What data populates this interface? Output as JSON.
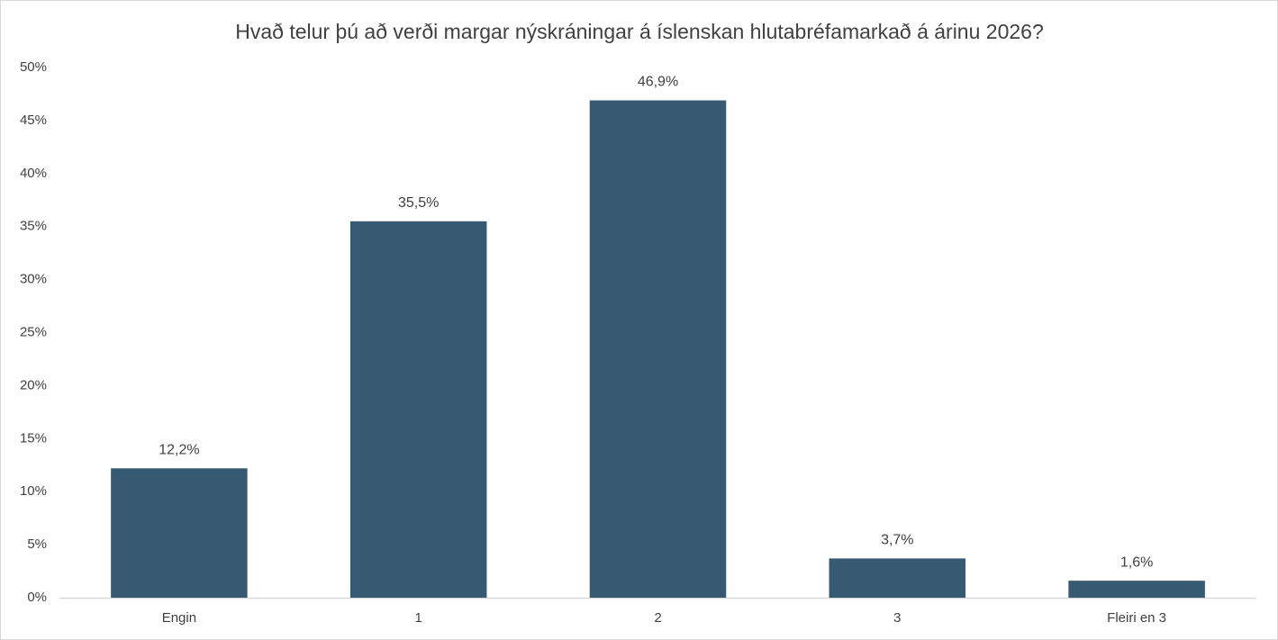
{
  "chart_data": {
    "type": "bar",
    "title": "Hvað telur þú að verði margar nýskráningar á íslenskan hlutabréfamarkað á árinu 2026?",
    "categories": [
      "Engin",
      "1",
      "2",
      "3",
      "Fleiri en 3"
    ],
    "values": [
      12.2,
      35.5,
      46.9,
      3.7,
      1.6
    ],
    "value_labels": [
      "12,2%",
      "35,5%",
      "46,9%",
      "3,7%",
      "1,6%"
    ],
    "color": "#355a72",
    "ylim": [
      0,
      50
    ],
    "yticks": [
      {
        "value": 0,
        "label": "0%"
      },
      {
        "value": 5,
        "label": "5%"
      },
      {
        "value": 10,
        "label": "10%"
      },
      {
        "value": 15,
        "label": "15%"
      },
      {
        "value": 20,
        "label": "20%"
      },
      {
        "value": 25,
        "label": "25%"
      },
      {
        "value": 30,
        "label": "30%"
      },
      {
        "value": 35,
        "label": "35%"
      },
      {
        "value": 40,
        "label": "40%"
      },
      {
        "value": 45,
        "label": "45%"
      },
      {
        "value": 50,
        "label": "50%"
      }
    ],
    "grid": false
  }
}
